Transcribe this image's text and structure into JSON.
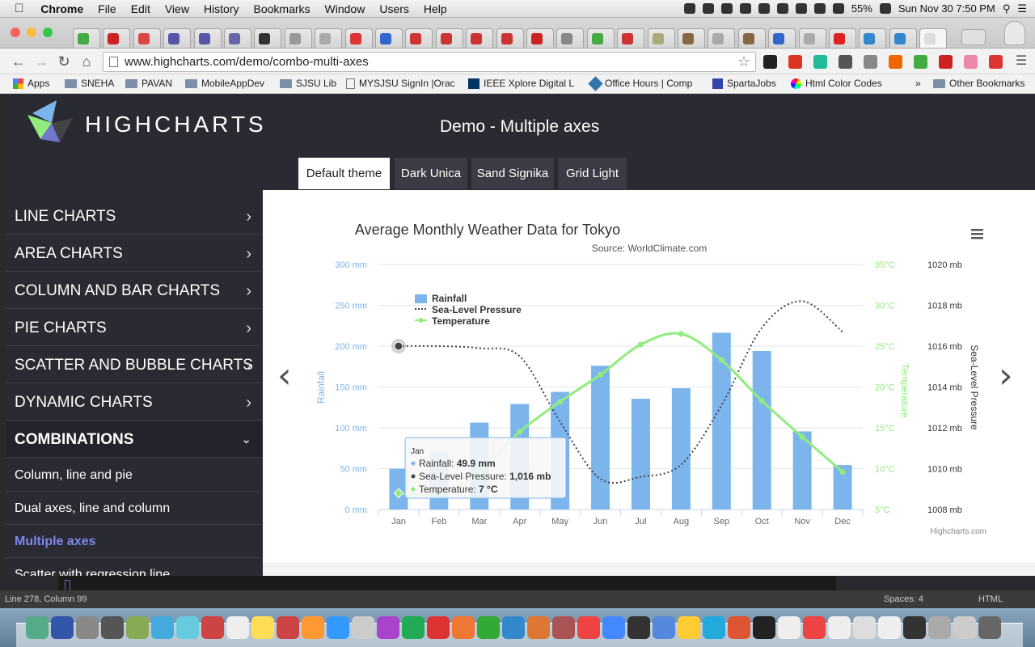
{
  "menubar": {
    "apple": "",
    "app": "Chrome",
    "items": [
      "File",
      "Edit",
      "View",
      "History",
      "Bookmarks",
      "Window",
      "Users",
      "Help"
    ],
    "battery": "55%",
    "clock": "Sun Nov 30  7:50 PM"
  },
  "browser": {
    "url": "www.highcharts.com/demo/combo-multi-axes",
    "bookmarks": [
      "Apps",
      "SNEHA",
      "PAVAN",
      "MobileAppDev",
      "SJSU Lib",
      "MYSJSU SignIn |Orac",
      "IEEE Xplore Digital L",
      "Office Hours | Comp",
      "SpartaJobs",
      "Html Color Codes"
    ],
    "bookmarks_overflow": "»",
    "other_bookmarks": "Other Bookmarks"
  },
  "site": {
    "brand": "HIGHCHARTS",
    "demo_title": "Demo - Multiple axes",
    "theme_tabs": [
      "Default theme",
      "Dark Unica",
      "Sand Signika",
      "Grid Light"
    ],
    "sidebar": [
      "LINE CHARTS",
      "AREA CHARTS",
      "COLUMN AND BAR CHARTS",
      "PIE CHARTS",
      "SCATTER AND BUBBLE CHARTS",
      "DYNAMIC CHARTS",
      "COMBINATIONS"
    ],
    "sub_items": [
      "Column, line and pie",
      "Dual axes, line and column",
      "Multiple axes",
      "Scatter with regression line"
    ]
  },
  "editor": {
    "status_left": "Line 278, Column 99",
    "spaces": "Spaces: 4",
    "syntax": "HTML"
  },
  "colors": {
    "rainfall": "#7cb5ec",
    "pressure": "#434348",
    "temperature": "#90ed7d",
    "sidebar_bg": "#2a2a33",
    "active_sub": "#8087e8"
  },
  "chart_data": {
    "type": "bar",
    "title": "Average Monthly Weather Data for Tokyo",
    "subtitle": "Source: WorldClimate.com",
    "credits": "Highcharts.com",
    "categories": [
      "Jan",
      "Feb",
      "Mar",
      "Apr",
      "May",
      "Jun",
      "Jul",
      "Aug",
      "Sep",
      "Oct",
      "Nov",
      "Dec"
    ],
    "series": [
      {
        "name": "Rainfall",
        "type": "column",
        "axis": "y_left",
        "unit": "mm",
        "values": [
          49.9,
          71.5,
          106.4,
          129.2,
          144.0,
          176.0,
          135.6,
          148.5,
          216.4,
          194.1,
          95.6,
          54.4
        ]
      },
      {
        "name": "Sea-Level Pressure",
        "type": "spline-dotted",
        "axis": "y_right",
        "unit": "mb",
        "values": [
          1016,
          1016,
          1015.9,
          1015.5,
          1012.3,
          1009.5,
          1009.6,
          1010.2,
          1013.1,
          1016.9,
          1018.2,
          1016.7
        ]
      },
      {
        "name": "Temperature",
        "type": "spline",
        "axis": "y_temp",
        "unit": "°C",
        "values": [
          7.0,
          6.9,
          9.5,
          14.5,
          18.2,
          21.5,
          25.2,
          26.5,
          23.3,
          18.3,
          13.9,
          9.6
        ]
      }
    ],
    "axes": {
      "y_left": {
        "title": "Rainfall",
        "ticks": [
          "0 mm",
          "50 mm",
          "100 mm",
          "150 mm",
          "200 mm",
          "250 mm",
          "300 mm"
        ],
        "range": [
          0,
          300
        ]
      },
      "y_temp": {
        "title": "Temperature",
        "ticks": [
          "5°C",
          "10°C",
          "15°C",
          "20°C",
          "25°C",
          "30°C",
          "35°C"
        ],
        "range": [
          5,
          35
        ]
      },
      "y_right": {
        "title": "Sea-Level Pressure",
        "ticks": [
          "1008 mb",
          "1010 mb",
          "1012 mb",
          "1014 mb",
          "1016 mb",
          "1018 mb",
          "1020 mb"
        ],
        "range": [
          1008,
          1020
        ]
      }
    },
    "legend": "top-left inside",
    "grid": true,
    "tooltip": {
      "header": "Jan",
      "rows": [
        {
          "label": "Rainfall: ",
          "value": "49.9 mm"
        },
        {
          "label": "Sea-Level Pressure: ",
          "value": "1,016 mb"
        },
        {
          "label": "Temperature: ",
          "value": "7 °C"
        }
      ]
    }
  }
}
